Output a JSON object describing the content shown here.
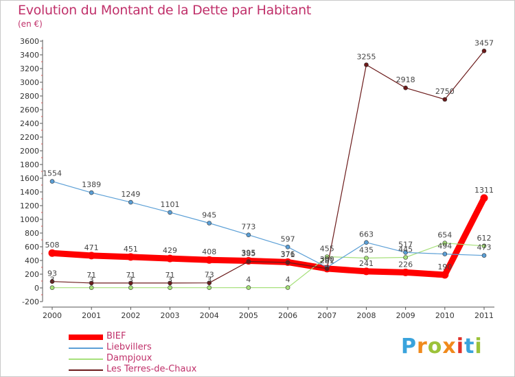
{
  "title": "Evolution du Montant de la Dette par Habitant",
  "subtitle": "(en €)",
  "logo": {
    "letters": [
      "P",
      "r",
      "o",
      "x",
      "i",
      "t",
      "i"
    ],
    "colors": [
      "#3aa3dc",
      "#f08a1c",
      "#9cc23a",
      "#f08a1c",
      "#e0322a",
      "#3aa3dc",
      "#9cc23a"
    ]
  },
  "chart_data": {
    "type": "line",
    "title": "Evolution du Montant de la Dette par Habitant",
    "ylabel": "(en €)",
    "x": [
      "2000",
      "2001",
      "2002",
      "2003",
      "2004",
      "2005",
      "2006",
      "2007",
      "2008",
      "2009",
      "2010",
      "2011"
    ],
    "ylim": [
      -200,
      3600
    ],
    "yticks": [
      -200,
      0,
      200,
      400,
      600,
      800,
      1000,
      1200,
      1400,
      1600,
      1800,
      2000,
      2200,
      2400,
      2600,
      2800,
      3000,
      3200,
      3400,
      3600
    ],
    "grid": false,
    "legend_position": "bottom-left",
    "series": [
      {
        "name": "BIEF",
        "color": "#ff0000",
        "values": [
          508,
          471,
          451,
          429,
          408,
          395,
          376,
          281,
          241,
          226,
          190,
          1311
        ],
        "labels": [
          "508",
          "471",
          "451",
          "429",
          "408",
          "395",
          "376",
          "281",
          "241",
          "226",
          "190",
          "1311"
        ]
      },
      {
        "name": "Liebvillers",
        "color": "#5b9fd6",
        "values": [
          1554,
          1389,
          1249,
          1101,
          945,
          773,
          597,
          300,
          663,
          517,
          494,
          473
        ],
        "labels": [
          "1554",
          "1389",
          "1249",
          "1101",
          "945",
          "773",
          "597",
          "300",
          "663",
          "517",
          "494",
          "473"
        ]
      },
      {
        "name": "Dampjoux",
        "color": "#a6e07a",
        "values": [
          3,
          3,
          3,
          3,
          3,
          4,
          4,
          455,
          435,
          445,
          654,
          612
        ],
        "labels": [
          "3",
          "3",
          "3",
          "3",
          "3",
          "4",
          "4",
          "455",
          "435",
          "445",
          "654",
          "612"
        ]
      },
      {
        "name": "Les Terres-de-Chaux",
        "color": "#6b1a1a",
        "values": [
          93,
          71,
          71,
          71,
          73,
          385,
          371,
          281,
          3255,
          2918,
          2750,
          3457
        ],
        "labels": [
          "93",
          "71",
          "71",
          "71",
          "73",
          "385",
          "371",
          "281",
          "3255",
          "2918",
          "2750",
          "3457"
        ]
      }
    ]
  }
}
